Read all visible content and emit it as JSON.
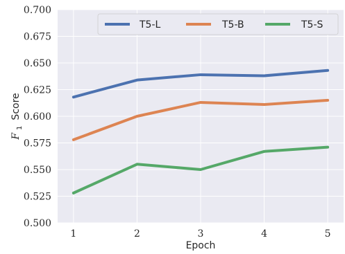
{
  "chart_data": {
    "type": "line",
    "x": [
      1,
      2,
      3,
      4,
      5
    ],
    "series": [
      {
        "name": "T5-L",
        "values": [
          0.618,
          0.634,
          0.639,
          0.638,
          0.643
        ],
        "color": "#4c72b0"
      },
      {
        "name": "T5-B",
        "values": [
          0.578,
          0.6,
          0.613,
          0.611,
          0.615
        ],
        "color": "#dd8452"
      },
      {
        "name": "T5-S",
        "values": [
          0.528,
          0.555,
          0.55,
          0.567,
          0.571
        ],
        "color": "#55a868"
      }
    ],
    "xlabel": "Epoch",
    "ylabel": {
      "main": "F",
      "sub": "1",
      "rest": "Score"
    },
    "xlim": [
      0.75,
      5.25
    ],
    "ylim": [
      0.5,
      0.7
    ],
    "xticks": [
      1,
      2,
      3,
      4,
      5
    ],
    "yticks": [
      "0.500",
      "0.525",
      "0.550",
      "0.575",
      "0.600",
      "0.625",
      "0.650",
      "0.675",
      "0.700"
    ],
    "grid": true,
    "legend": "top-right",
    "background": "#eaeaf2"
  }
}
